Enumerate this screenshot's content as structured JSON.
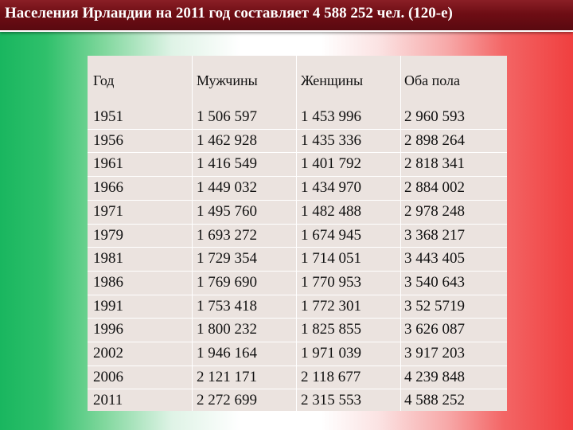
{
  "title": "Населения Ирландии на 2011 год составляет 4 588 252 чел. (120-е)",
  "table": {
    "headers": [
      "Год",
      "Мужчины",
      "Женщины",
      "Оба пола"
    ],
    "rows": [
      [
        "1951",
        "1 506 597",
        "1 453 996",
        "2 960 593"
      ],
      [
        "1956",
        "1 462 928",
        "1 435 336",
        "2 898 264"
      ],
      [
        "1961",
        "1 416 549",
        "1 401 792",
        "2 818 341"
      ],
      [
        "1966",
        "1 449 032",
        "1 434 970",
        "2 884 002"
      ],
      [
        "1971",
        "1 495 760",
        "1 482 488",
        "2 978 248"
      ],
      [
        "1979",
        "1 693 272",
        "1 674 945",
        "3 368 217"
      ],
      [
        "1981",
        "1 729 354",
        "1 714 051",
        "3 443 405"
      ],
      [
        "1986",
        "1 769 690",
        "1 770 953",
        "3 540 643"
      ],
      [
        "1991",
        "1 753 418",
        "1 772 301",
        "3 52 5719"
      ],
      [
        "1996",
        "1 800 232",
        "1 825 855",
        "3 626 087"
      ],
      [
        "2002",
        "1 946 164",
        "1 971 039",
        "3 917 203"
      ],
      [
        "2006",
        "2 121 171",
        "2 118 677",
        "4 239 848"
      ],
      [
        "2011",
        "2 272 699",
        "2 315 553",
        "4 588 252"
      ]
    ]
  },
  "colors": {
    "title_bar": "#6e0d14",
    "table_bg": "#ebe3df",
    "flag_green": "#19b65f",
    "flag_red": "#f03f3f"
  }
}
